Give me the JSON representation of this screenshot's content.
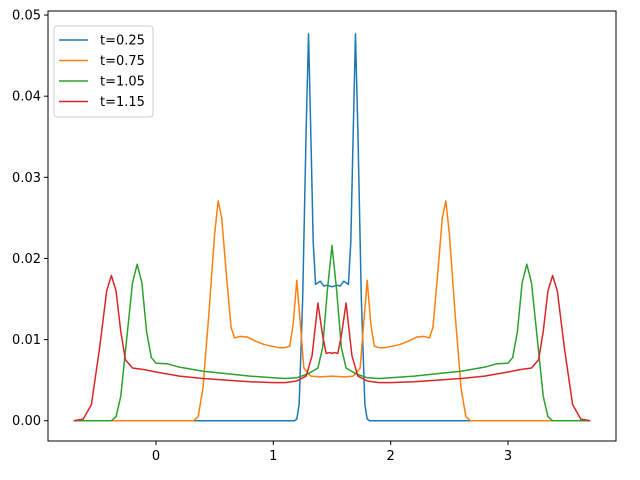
{
  "chart_data": {
    "type": "line",
    "title": "",
    "xlabel": "",
    "ylabel": "",
    "xlim": [
      -0.92,
      3.92
    ],
    "ylim": [
      -0.0025,
      0.0505
    ],
    "xticks": [
      0,
      1,
      2,
      3
    ],
    "xtick_labels": [
      "0",
      "1",
      "2",
      "3"
    ],
    "yticks": [
      0.0,
      0.01,
      0.02,
      0.03,
      0.04,
      0.05
    ],
    "ytick_labels": [
      "0.00",
      "0.01",
      "0.02",
      "0.03",
      "0.04",
      "0.05"
    ],
    "grid": false,
    "legend_position": "top-left",
    "series": [
      {
        "name": "t=0.25",
        "color": "#1f77b4",
        "points": [
          [
            -0.7,
            0
          ],
          [
            1.18,
            0
          ],
          [
            1.2,
            0.0002
          ],
          [
            1.22,
            0.002
          ],
          [
            1.25,
            0.015
          ],
          [
            1.28,
            0.036
          ],
          [
            1.3,
            0.0477
          ],
          [
            1.32,
            0.035
          ],
          [
            1.34,
            0.022
          ],
          [
            1.36,
            0.0168
          ],
          [
            1.4,
            0.0172
          ],
          [
            1.43,
            0.0166
          ],
          [
            1.46,
            0.0167
          ],
          [
            1.5,
            0.0165
          ],
          [
            1.54,
            0.0167
          ],
          [
            1.57,
            0.0166
          ],
          [
            1.6,
            0.0172
          ],
          [
            1.64,
            0.0168
          ],
          [
            1.66,
            0.022
          ],
          [
            1.68,
            0.035
          ],
          [
            1.7,
            0.0477
          ],
          [
            1.72,
            0.036
          ],
          [
            1.75,
            0.015
          ],
          [
            1.78,
            0.002
          ],
          [
            1.8,
            0.0002
          ],
          [
            1.82,
            0
          ],
          [
            3.7,
            0
          ]
        ]
      },
      {
        "name": "t=0.75",
        "color": "#ff7f0e",
        "points": [
          [
            -0.7,
            0
          ],
          [
            0.32,
            0
          ],
          [
            0.36,
            0.0005
          ],
          [
            0.4,
            0.004
          ],
          [
            0.45,
            0.013
          ],
          [
            0.5,
            0.023
          ],
          [
            0.53,
            0.0271
          ],
          [
            0.56,
            0.025
          ],
          [
            0.6,
            0.018
          ],
          [
            0.64,
            0.0115
          ],
          [
            0.67,
            0.0102
          ],
          [
            0.72,
            0.0104
          ],
          [
            0.78,
            0.0103
          ],
          [
            0.85,
            0.0098
          ],
          [
            0.92,
            0.0094
          ],
          [
            0.98,
            0.0092
          ],
          [
            1.05,
            0.009
          ],
          [
            1.1,
            0.009
          ],
          [
            1.14,
            0.0092
          ],
          [
            1.17,
            0.012
          ],
          [
            1.2,
            0.0173
          ],
          [
            1.23,
            0.012
          ],
          [
            1.26,
            0.0065
          ],
          [
            1.32,
            0.0055
          ],
          [
            1.4,
            0.0054
          ],
          [
            1.5,
            0.0055
          ],
          [
            1.6,
            0.0054
          ],
          [
            1.68,
            0.0055
          ],
          [
            1.74,
            0.0065
          ],
          [
            1.77,
            0.012
          ],
          [
            1.8,
            0.0173
          ],
          [
            1.83,
            0.012
          ],
          [
            1.86,
            0.0092
          ],
          [
            1.9,
            0.009
          ],
          [
            1.95,
            0.009
          ],
          [
            2.02,
            0.0092
          ],
          [
            2.08,
            0.0094
          ],
          [
            2.15,
            0.0098
          ],
          [
            2.22,
            0.0103
          ],
          [
            2.28,
            0.0104
          ],
          [
            2.33,
            0.0102
          ],
          [
            2.36,
            0.0115
          ],
          [
            2.4,
            0.018
          ],
          [
            2.44,
            0.025
          ],
          [
            2.47,
            0.0271
          ],
          [
            2.5,
            0.023
          ],
          [
            2.55,
            0.013
          ],
          [
            2.6,
            0.004
          ],
          [
            2.64,
            0.0005
          ],
          [
            2.68,
            0
          ],
          [
            3.7,
            0
          ]
        ]
      },
      {
        "name": "t=1.05",
        "color": "#2ca02c",
        "points": [
          [
            -0.7,
            0
          ],
          [
            -0.38,
            0
          ],
          [
            -0.34,
            0.0005
          ],
          [
            -0.3,
            0.003
          ],
          [
            -0.25,
            0.01
          ],
          [
            -0.2,
            0.017
          ],
          [
            -0.16,
            0.0193
          ],
          [
            -0.12,
            0.017
          ],
          [
            -0.08,
            0.011
          ],
          [
            -0.04,
            0.0078
          ],
          [
            0,
            0.0071
          ],
          [
            0.1,
            0.007
          ],
          [
            0.2,
            0.0066
          ],
          [
            0.4,
            0.0061
          ],
          [
            0.6,
            0.0058
          ],
          [
            0.8,
            0.0055
          ],
          [
            1.0,
            0.0053
          ],
          [
            1.1,
            0.0052
          ],
          [
            1.2,
            0.0053
          ],
          [
            1.3,
            0.0058
          ],
          [
            1.38,
            0.0065
          ],
          [
            1.42,
            0.009
          ],
          [
            1.46,
            0.016
          ],
          [
            1.5,
            0.0216
          ],
          [
            1.54,
            0.016
          ],
          [
            1.58,
            0.009
          ],
          [
            1.62,
            0.0065
          ],
          [
            1.7,
            0.0058
          ],
          [
            1.8,
            0.0053
          ],
          [
            1.9,
            0.0052
          ],
          [
            2.0,
            0.0053
          ],
          [
            2.2,
            0.0055
          ],
          [
            2.4,
            0.0058
          ],
          [
            2.6,
            0.0061
          ],
          [
            2.8,
            0.0066
          ],
          [
            2.9,
            0.007
          ],
          [
            3.0,
            0.0071
          ],
          [
            3.04,
            0.0078
          ],
          [
            3.08,
            0.011
          ],
          [
            3.12,
            0.017
          ],
          [
            3.16,
            0.0193
          ],
          [
            3.2,
            0.017
          ],
          [
            3.25,
            0.01
          ],
          [
            3.3,
            0.003
          ],
          [
            3.34,
            0.0005
          ],
          [
            3.38,
            0
          ],
          [
            3.7,
            0
          ]
        ]
      },
      {
        "name": "t=1.15",
        "color": "#d62728",
        "points": [
          [
            -0.7,
            0
          ],
          [
            -0.62,
            0.0002
          ],
          [
            -0.55,
            0.002
          ],
          [
            -0.48,
            0.009
          ],
          [
            -0.42,
            0.016
          ],
          [
            -0.38,
            0.0179
          ],
          [
            -0.34,
            0.016
          ],
          [
            -0.3,
            0.011
          ],
          [
            -0.26,
            0.0075
          ],
          [
            -0.2,
            0.0065
          ],
          [
            -0.1,
            0.0063
          ],
          [
            0,
            0.006
          ],
          [
            0.2,
            0.0055
          ],
          [
            0.4,
            0.0052
          ],
          [
            0.6,
            0.005
          ],
          [
            0.8,
            0.0048
          ],
          [
            1.0,
            0.0047
          ],
          [
            1.1,
            0.0047
          ],
          [
            1.2,
            0.0049
          ],
          [
            1.28,
            0.0055
          ],
          [
            1.33,
            0.008
          ],
          [
            1.38,
            0.0145
          ],
          [
            1.42,
            0.0105
          ],
          [
            1.45,
            0.0083
          ],
          [
            1.48,
            0.0084
          ],
          [
            1.5,
            0.0083
          ],
          [
            1.52,
            0.0084
          ],
          [
            1.55,
            0.0083
          ],
          [
            1.58,
            0.0105
          ],
          [
            1.62,
            0.0145
          ],
          [
            1.67,
            0.008
          ],
          [
            1.72,
            0.0055
          ],
          [
            1.8,
            0.0049
          ],
          [
            1.9,
            0.0047
          ],
          [
            2.0,
            0.0047
          ],
          [
            2.2,
            0.0048
          ],
          [
            2.4,
            0.005
          ],
          [
            2.6,
            0.0052
          ],
          [
            2.8,
            0.0055
          ],
          [
            3.0,
            0.006
          ],
          [
            3.1,
            0.0063
          ],
          [
            3.2,
            0.0065
          ],
          [
            3.26,
            0.0075
          ],
          [
            3.3,
            0.011
          ],
          [
            3.34,
            0.016
          ],
          [
            3.38,
            0.0179
          ],
          [
            3.42,
            0.016
          ],
          [
            3.48,
            0.009
          ],
          [
            3.55,
            0.002
          ],
          [
            3.62,
            0.0002
          ],
          [
            3.7,
            0
          ]
        ]
      }
    ]
  }
}
